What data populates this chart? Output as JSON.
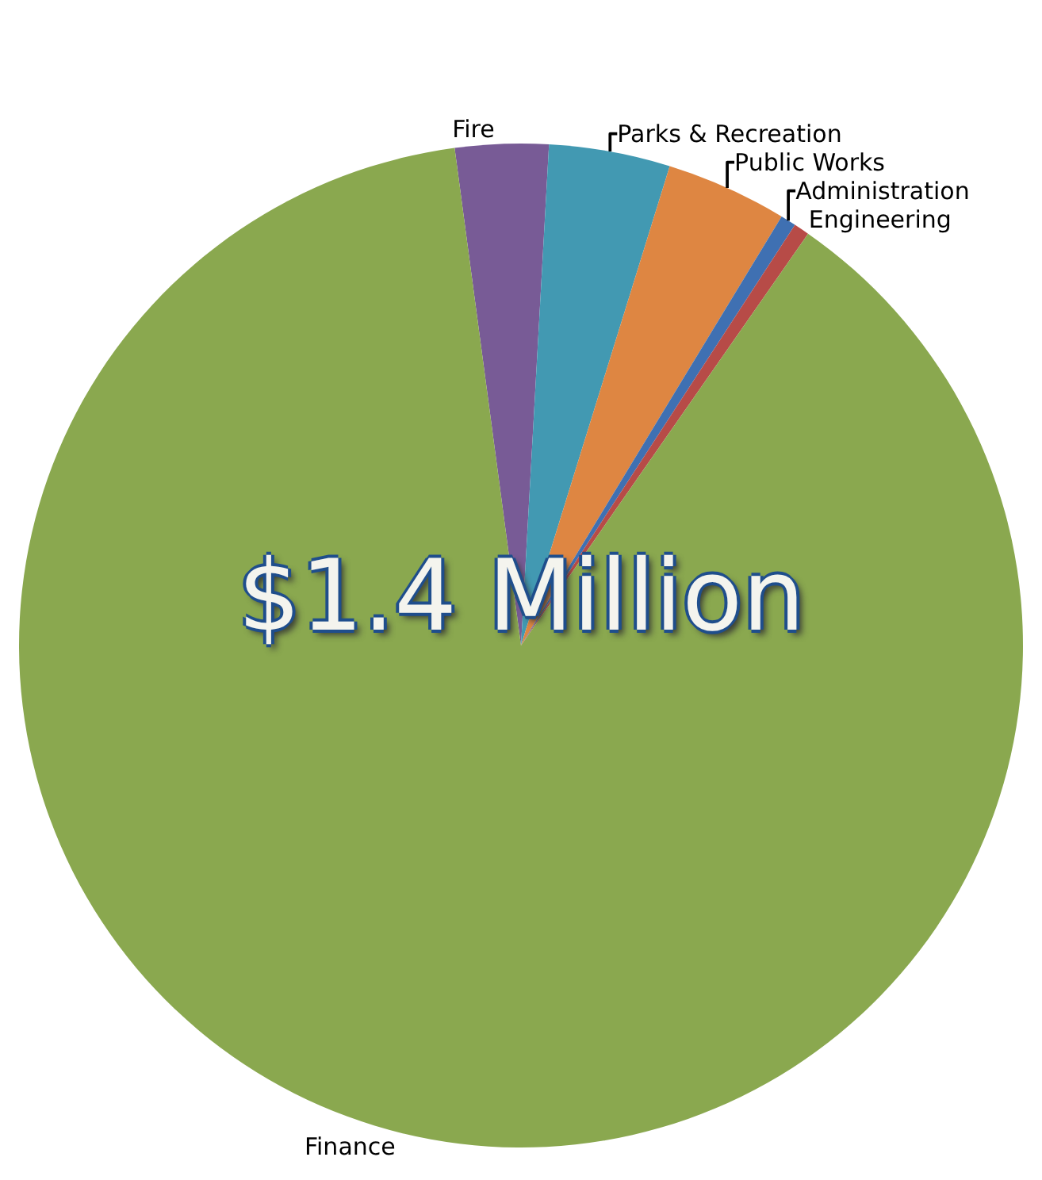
{
  "chart_data": {
    "type": "pie",
    "categories": [
      "Fire",
      "Parks & Recreation",
      "Public Works",
      "Administration",
      "Engineering",
      "Finance"
    ],
    "values": [
      3.0,
      3.9,
      3.9,
      0.5,
      0.5,
      88.2
    ],
    "colors": [
      "#785b96",
      "#4299b2",
      "#de8642",
      "#3f70b2",
      "#b74b47",
      "#8aa84f"
    ],
    "annotations": [
      "$1.4 Million"
    ],
    "legend": false
  }
}
